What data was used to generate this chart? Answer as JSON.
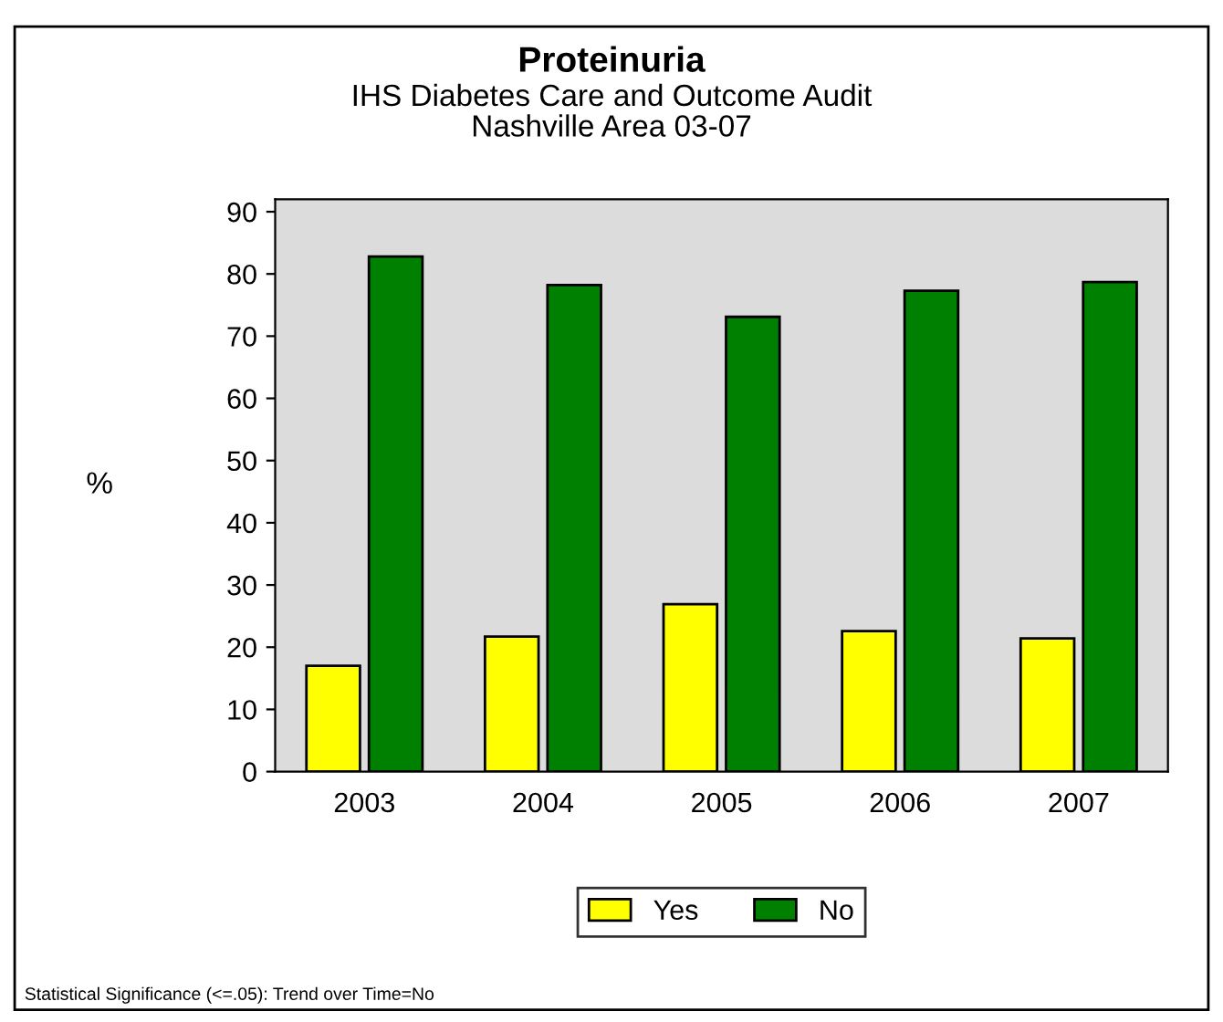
{
  "chart_data": {
    "type": "bar",
    "title": "Proteinuria",
    "subtitle": "IHS Diabetes Care and Outcome Audit\nNashville Area 03-07",
    "ylabel": "%",
    "categories": [
      "2003",
      "2004",
      "2005",
      "2006",
      "2007"
    ],
    "series": [
      {
        "name": "Yes",
        "color": "#ffff00",
        "values": [
          17.0,
          21.7,
          26.9,
          22.6,
          21.4
        ]
      },
      {
        "name": "No",
        "color": "#008000",
        "values": [
          82.8,
          78.2,
          73.1,
          77.3,
          78.7
        ]
      }
    ],
    "ylim": [
      0,
      92
    ],
    "yticks": [
      0,
      10,
      20,
      30,
      40,
      50,
      60,
      70,
      80,
      90
    ],
    "grid": false,
    "legend": "bottom",
    "annotations": [
      "Statistical Significance (<=.05): Trend over Time=No"
    ]
  }
}
